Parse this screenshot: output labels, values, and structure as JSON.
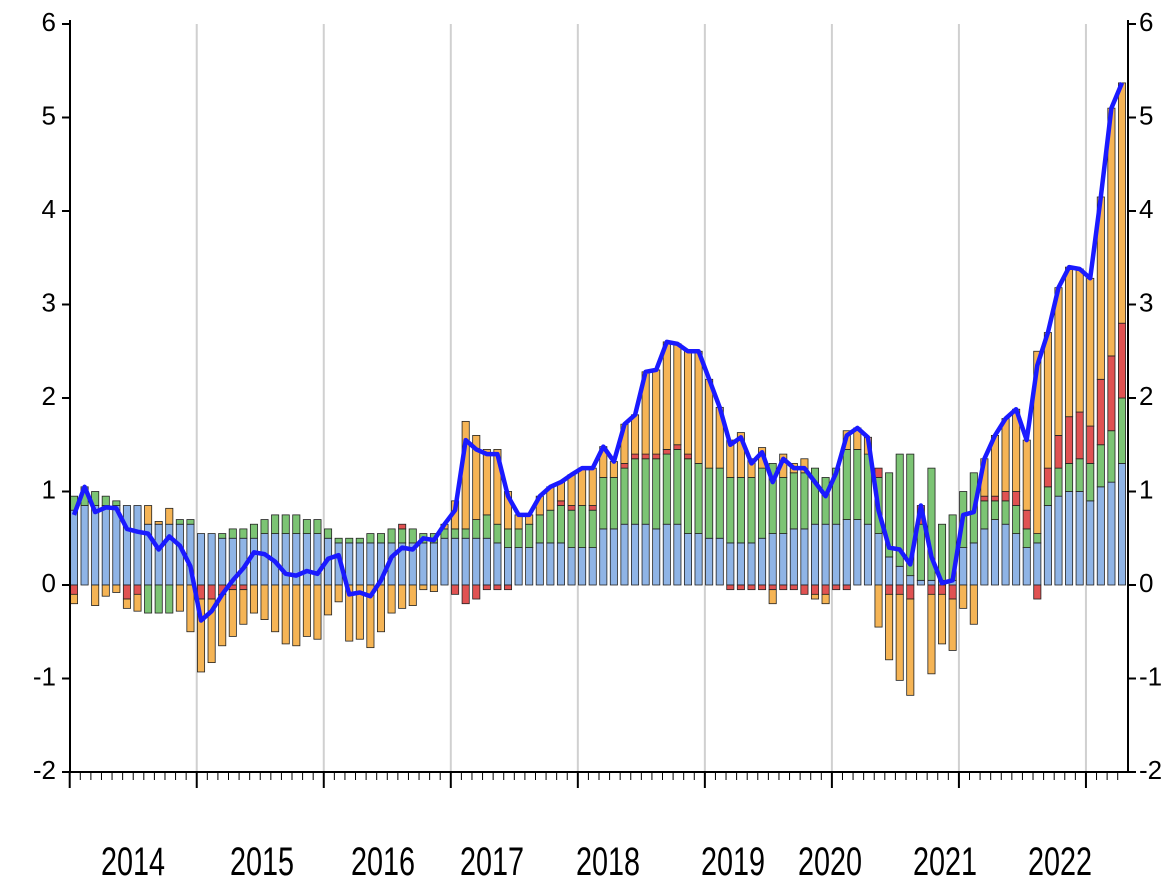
{
  "chart_data": {
    "type": "bar",
    "stacked": true,
    "year_labels": [
      "2014",
      "2015",
      "2016",
      "2017",
      "2018",
      "2019",
      "2020",
      "2021",
      "2022"
    ],
    "ylim": [
      -2,
      6
    ],
    "yticks": [
      -2,
      -1,
      0,
      1,
      2,
      3,
      4,
      5,
      6
    ],
    "y2lim": [
      -2,
      6
    ],
    "y2ticks": [
      -2,
      -1,
      0,
      1,
      2,
      3,
      4,
      5,
      6
    ],
    "grid": "vertical",
    "series": [
      {
        "color": "#8fb4e6",
        "values": [
          0.8,
          0.85,
          0.85,
          0.85,
          0.85,
          0.85,
          0.85,
          0.65,
          0.65,
          0.65,
          0.65,
          0.65,
          0.55,
          0.55,
          0.5,
          0.5,
          0.5,
          0.5,
          0.55,
          0.55,
          0.55,
          0.55,
          0.55,
          0.55,
          0.5,
          0.45,
          0.45,
          0.45,
          0.45,
          0.45,
          0.45,
          0.45,
          0.45,
          0.45,
          0.45,
          0.5,
          0.5,
          0.5,
          0.5,
          0.5,
          0.45,
          0.4,
          0.4,
          0.4,
          0.45,
          0.45,
          0.45,
          0.4,
          0.4,
          0.4,
          0.6,
          0.6,
          0.65,
          0.65,
          0.65,
          0.6,
          0.65,
          0.65,
          0.55,
          0.55,
          0.5,
          0.5,
          0.45,
          0.45,
          0.45,
          0.5,
          0.55,
          0.55,
          0.6,
          0.6,
          0.65,
          0.65,
          0.65,
          0.7,
          0.7,
          0.65,
          0.55,
          0.3,
          0.2,
          0.1,
          0.05,
          0.05,
          0.05,
          0.05,
          0.4,
          0.45,
          0.6,
          0.7,
          0.65,
          0.55,
          0.4,
          0.45,
          0.85,
          0.95,
          1.0,
          1.0,
          0.9,
          1.05,
          1.1,
          1.3
        ]
      },
      {
        "color": "#7cc474",
        "values": [
          0.15,
          0.2,
          0.15,
          0.1,
          0.05,
          0,
          0,
          -0.3,
          -0.3,
          -0.3,
          0.05,
          0.05,
          0,
          0,
          0.05,
          0.1,
          0.1,
          0.15,
          0.15,
          0.2,
          0.2,
          0.2,
          0.15,
          0.15,
          0.1,
          0.05,
          0.05,
          0.05,
          0.1,
          0.1,
          0.15,
          0.15,
          0.15,
          0.1,
          0.1,
          0.1,
          0.1,
          0.1,
          0.2,
          0.25,
          0.2,
          0.2,
          0.2,
          0.25,
          0.3,
          0.35,
          0.4,
          0.4,
          0.45,
          0.4,
          0.55,
          0.55,
          0.6,
          0.7,
          0.7,
          0.75,
          0.75,
          0.8,
          0.8,
          0.75,
          0.75,
          0.75,
          0.7,
          0.7,
          0.7,
          0.75,
          0.75,
          0.6,
          0.6,
          0.6,
          0.6,
          0.5,
          0.6,
          0.75,
          0.75,
          0.75,
          0.6,
          0.9,
          1.2,
          1.3,
          0.6,
          1.2,
          0.6,
          0.7,
          0.6,
          0.75,
          0.3,
          0.2,
          0.25,
          0.3,
          0.2,
          0.1,
          0.2,
          0.3,
          0.3,
          0.35,
          0.4,
          0.45,
          0.55,
          0.7
        ]
      },
      {
        "color": "#e05252",
        "values": [
          -0.1,
          0,
          0,
          0,
          0,
          -0.15,
          -0.1,
          0,
          0,
          0,
          0,
          0,
          -0.15,
          -0.15,
          -0.1,
          -0.05,
          -0.05,
          0,
          0,
          0,
          0,
          0,
          0,
          0,
          0,
          0,
          0,
          0,
          0,
          0,
          0,
          0.05,
          0,
          0,
          0,
          0,
          -0.1,
          -0.2,
          -0.15,
          -0.05,
          -0.05,
          -0.05,
          0,
          0,
          0,
          0,
          0.05,
          0.05,
          0,
          0.05,
          0,
          0,
          0.05,
          0.05,
          0.05,
          0.05,
          0.05,
          0.05,
          0.05,
          0,
          0,
          0,
          -0.05,
          -0.05,
          -0.05,
          -0.05,
          -0.05,
          -0.05,
          -0.05,
          -0.1,
          -0.1,
          -0.1,
          -0.05,
          -0.05,
          0,
          0,
          0.1,
          -0.1,
          -0.1,
          -0.15,
          0.2,
          -0.1,
          -0.1,
          -0.15,
          0,
          0,
          0.05,
          0.05,
          0.1,
          0.15,
          0.2,
          -0.15,
          0.2,
          0.35,
          0.5,
          0.5,
          0.4,
          0.7,
          0.8,
          0.8
        ]
      },
      {
        "color": "#f5b455",
        "values": [
          -0.1,
          0,
          -0.22,
          -0.12,
          -0.08,
          -0.1,
          -0.18,
          0.2,
          0.03,
          0.17,
          -0.28,
          -0.5,
          -0.78,
          -0.68,
          -0.55,
          -0.5,
          -0.37,
          -0.3,
          -0.37,
          -0.5,
          -0.63,
          -0.65,
          -0.55,
          -0.58,
          -0.32,
          -0.18,
          -0.6,
          -0.58,
          -0.67,
          -0.5,
          -0.3,
          -0.25,
          -0.22,
          -0.05,
          -0.07,
          0.05,
          0.3,
          1.15,
          0.9,
          0.7,
          0.8,
          0.4,
          0.15,
          0.1,
          0.2,
          0.25,
          0.2,
          0.33,
          0.4,
          0.4,
          0.33,
          0.17,
          0.42,
          0.42,
          0.88,
          0.9,
          1.15,
          1.08,
          1.1,
          1.2,
          0.95,
          0.65,
          0.4,
          0.48,
          0.2,
          0.22,
          -0.15,
          0.25,
          0.1,
          0.15,
          -0.05,
          -0.1,
          0,
          0.2,
          0.23,
          0.18,
          -0.45,
          -0.7,
          -0.92,
          -1.03,
          0,
          -0.85,
          -0.53,
          -0.55,
          -0.25,
          -0.42,
          0.4,
          0.65,
          0.78,
          0.88,
          0.75,
          1.95,
          1.45,
          1.58,
          1.6,
          1.53,
          1.58,
          1.95,
          2.65,
          2.57
        ]
      },
      {
        "style": "line",
        "color": "#1a1aff",
        "values": [
          0.75,
          1.05,
          0.78,
          0.83,
          0.82,
          0.6,
          0.57,
          0.55,
          0.38,
          0.52,
          0.42,
          0.2,
          -0.38,
          -0.28,
          -0.1,
          0.05,
          0.18,
          0.35,
          0.33,
          0.25,
          0.12,
          0.1,
          0.15,
          0.12,
          0.28,
          0.32,
          -0.1,
          -0.08,
          -0.12,
          0.05,
          0.3,
          0.4,
          0.38,
          0.5,
          0.48,
          0.65,
          0.8,
          1.55,
          1.45,
          1.4,
          1.4,
          0.95,
          0.75,
          0.75,
          0.95,
          1.05,
          1.1,
          1.18,
          1.25,
          1.25,
          1.48,
          1.32,
          1.72,
          1.82,
          2.28,
          2.3,
          2.6,
          2.58,
          2.5,
          2.5,
          2.2,
          1.9,
          1.5,
          1.58,
          1.3,
          1.42,
          1.1,
          1.35,
          1.25,
          1.25,
          1.1,
          0.95,
          1.2,
          1.6,
          1.68,
          1.58,
          0.8,
          0.4,
          0.38,
          0.22,
          0.85,
          0.3,
          0.02,
          0.05,
          0.75,
          0.78,
          1.35,
          1.6,
          1.78,
          1.88,
          1.55,
          2.35,
          2.7,
          3.18,
          3.4,
          3.38,
          3.28,
          4.15,
          5.1,
          5.37
        ]
      }
    ]
  }
}
